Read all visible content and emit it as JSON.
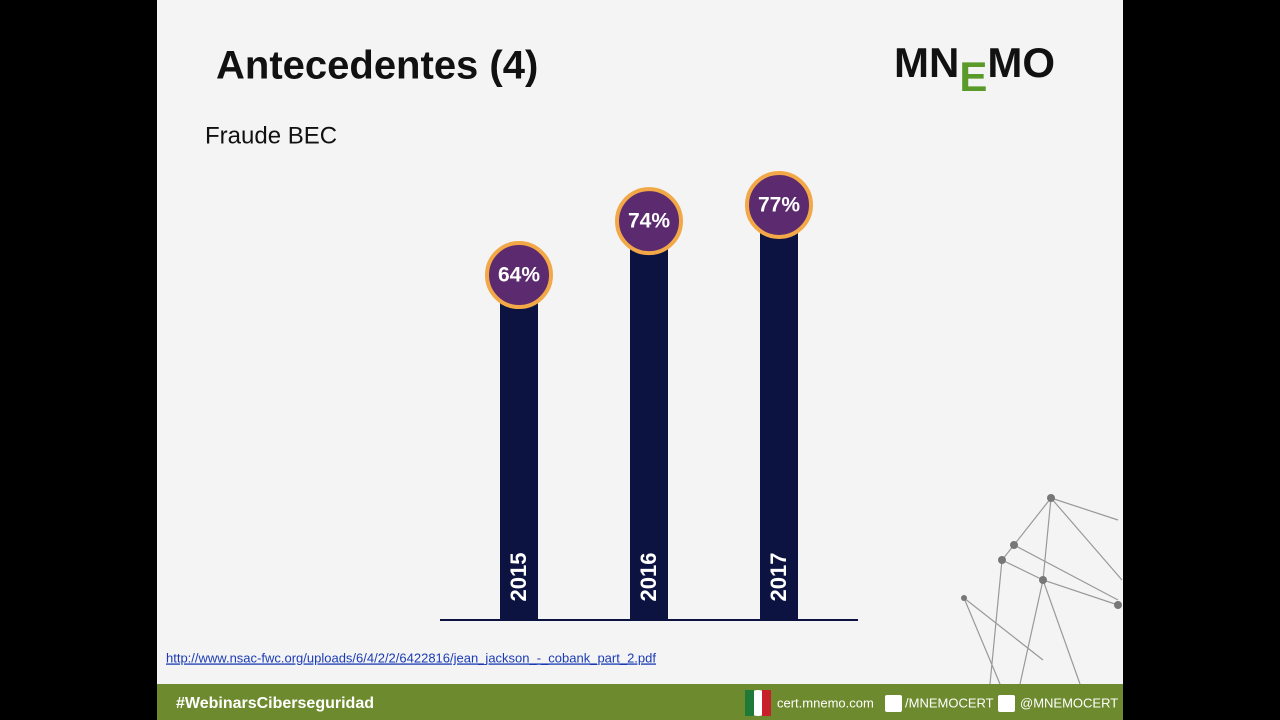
{
  "title": "Antecedentes (4)",
  "logo": {
    "parts": [
      "MN",
      "E",
      "MO"
    ]
  },
  "subtitle": "Fraude BEC",
  "source_link": "http://www.nsac-fwc.org/uploads/6/4/2/2/6422816/jean_jackson_-_cobank_part_2.pdf",
  "footer": {
    "hashtag": "#WebinarsCiberseguridad",
    "website": "cert.mnemo.com",
    "facebook": "/MNEMOCERT",
    "twitter": "@MNEMOCERT"
  },
  "chart_data": {
    "type": "bar",
    "categories": [
      "2015",
      "2016",
      "2017"
    ],
    "values": [
      64,
      74,
      77
    ],
    "value_labels": [
      "64%",
      "74%",
      "77%"
    ],
    "color": "#0d1340",
    "marker_color": "#5b2a6f",
    "marker_border": "#f2a847"
  }
}
